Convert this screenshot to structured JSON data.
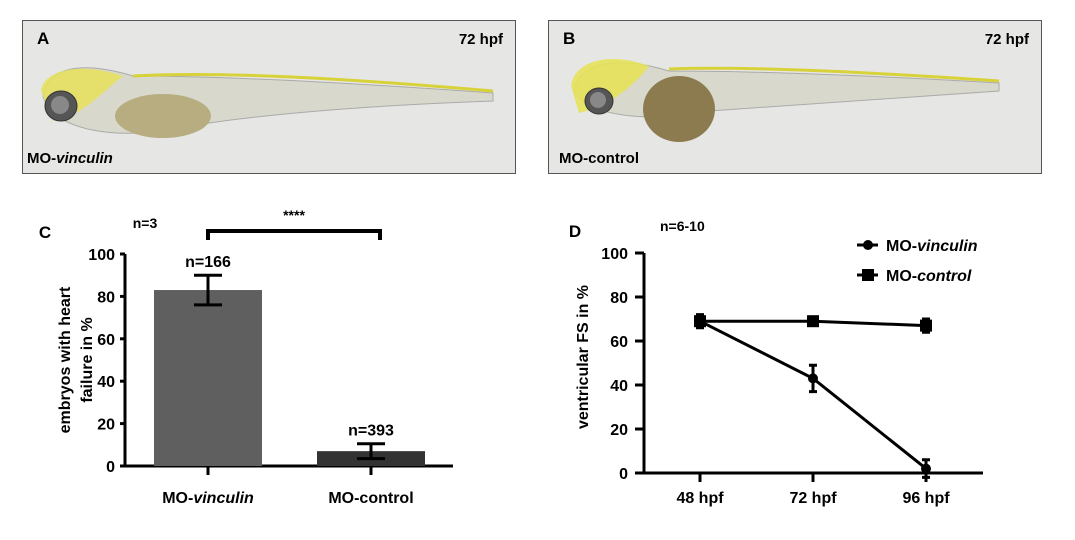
{
  "panels": {
    "a": {
      "letter": "A",
      "stage": "72 hpf",
      "label_prefix": "MO-",
      "label_italic": "vinculin"
    },
    "b": {
      "letter": "B",
      "stage": "72 hpf",
      "label": "MO-control"
    }
  },
  "chart_data": [
    {
      "type": "bar",
      "panel": "C",
      "note": "n=3",
      "significance": "****",
      "categories": [
        "MO-vinculin",
        "MO-control"
      ],
      "values": [
        83,
        7
      ],
      "errors": [
        7,
        3.5
      ],
      "bar_labels": [
        "n=166",
        "n=393"
      ],
      "colors": [
        "#5f5f5f",
        "#333333"
      ],
      "ylabel_lines": [
        "embryos with heart",
        "failure in %"
      ],
      "ylim": [
        0,
        100
      ],
      "yticks": [
        0,
        20,
        40,
        60,
        80,
        100
      ],
      "xtick_labels": [
        {
          "prefix": "MO-",
          "italic": "vinculin"
        },
        {
          "prefix": "MO-control",
          "italic": ""
        }
      ]
    },
    {
      "type": "line",
      "panel": "D",
      "note": "n=6-10",
      "categories": [
        "48 hpf",
        "72 hpf",
        "96 hpf"
      ],
      "series": [
        {
          "name": "MO-vinculin",
          "prefix": "MO-",
          "italic": "vinculin",
          "marker": "circle",
          "values": [
            69,
            43,
            2
          ],
          "errors": [
            3,
            6,
            4
          ]
        },
        {
          "name": "MO-control",
          "prefix": "MO-",
          "italic": "control",
          "marker": "square",
          "values": [
            69,
            69,
            67
          ],
          "errors": [
            2,
            1,
            3
          ]
        }
      ],
      "ylabel": "ventricular FS in %",
      "ylim": [
        0,
        100
      ],
      "yticks": [
        0,
        20,
        40,
        60,
        80,
        100
      ],
      "legend": "top-right"
    }
  ]
}
